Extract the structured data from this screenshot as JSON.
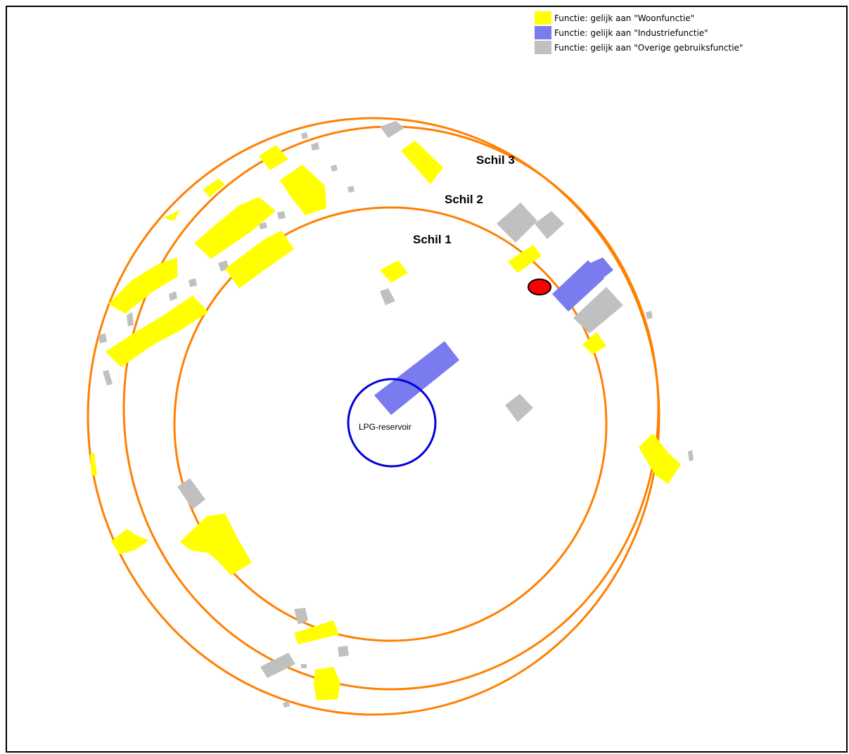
{
  "legend": [
    {
      "label": "Functie: gelijk aan \"Woonfunctie\"",
      "color": "#ffff00"
    },
    {
      "label": "Functie: gelijk aan \"Industriefunctie\"",
      "color": "#7b7bf0"
    },
    {
      "label": "Functie: gelijk aan \"Overige gebruiksfunctie\"",
      "color": "#c0c0c0"
    }
  ],
  "shells": [
    {
      "label": "Schil 1"
    },
    {
      "label": "Schil 2"
    },
    {
      "label": "Schil 3"
    }
  ],
  "reservoir": {
    "label": "LPG-reservoir"
  },
  "colors": {
    "ring": "#ff8000",
    "reservoir": "#0000dd",
    "marker": "#ff0000",
    "woon": "#ffff00",
    "industrie": "#7b7bf0",
    "overige": "#c0c0c0"
  }
}
